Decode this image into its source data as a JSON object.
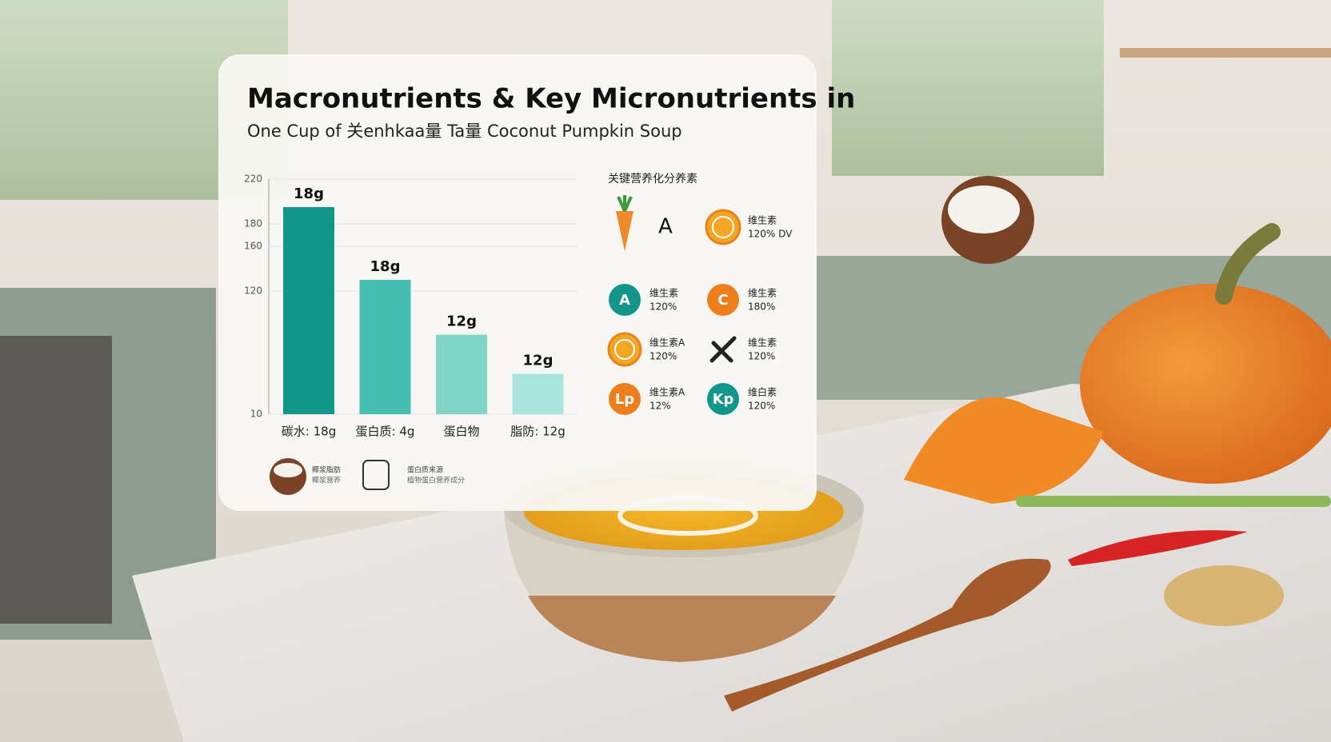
{
  "title": "Macronutrients & Key Micronutrients in",
  "subtitle": "One Cup of 关enhkaa量 Ta量 Coconut Pumpkin Soup",
  "chart_data": {
    "type": "bar",
    "categories": [
      "碳水: 18g",
      "蛋白质: 4g",
      "蛋白物",
      "脂防: 12g"
    ],
    "values": [
      195,
      130,
      81,
      46
    ],
    "colors": [
      "#12968a",
      "#44bfb0",
      "#80d4c8",
      "#a9e5dd"
    ],
    "annotations": [
      "18g",
      "18g",
      "12g",
      "12g"
    ],
    "ylim": [
      10,
      220
    ],
    "yticks": [
      10,
      120,
      160,
      180,
      220
    ],
    "grid": true
  },
  "micronutrients": {
    "title": "关键营养化分养素",
    "items": [
      {
        "label": "A"
      },
      {
        "label": "维生素",
        "value": "120% DV"
      },
      {
        "badge": "A",
        "label": "维生素",
        "value": "120%"
      },
      {
        "badge": "C",
        "label": "维生素",
        "value": "180%"
      },
      {
        "label": "维生素A",
        "value": "120%"
      },
      {
        "label": "维生素",
        "value": "120%"
      },
      {
        "badge": "Lp",
        "label": "维生素A",
        "value": "12%"
      },
      {
        "badge": "Kp",
        "label": "维白素",
        "value": "120%"
      }
    ]
  },
  "legend": [
    {
      "title": "椰浆脂肪",
      "text": "椰浆营养"
    },
    {
      "title": "蛋白质来源",
      "text": "植物蛋白营养成分"
    }
  ]
}
